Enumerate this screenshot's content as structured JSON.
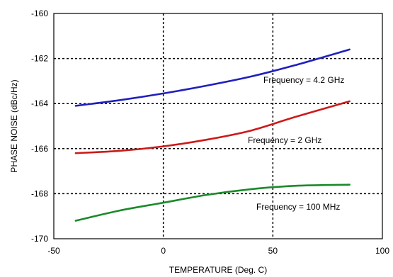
{
  "chart_data": {
    "type": "line",
    "title": "",
    "xlabel": "TEMPERATURE (Deg. C)",
    "ylabel": "PHASE NOISE (dBc/Hz)",
    "xlim": [
      -50,
      100
    ],
    "ylim": [
      -170,
      -160
    ],
    "x_ticks": [
      -50,
      0,
      50,
      100
    ],
    "y_ticks": [
      -170,
      -168,
      -166,
      -164,
      -162,
      -160
    ],
    "x_tick_labels": [
      "-50",
      "0",
      "50",
      "100"
    ],
    "y_tick_labels": [
      "-170",
      "-168",
      "-166",
      "-164",
      "-162",
      "-160"
    ],
    "grid": true,
    "legend": "none",
    "series": [
      {
        "label": "Frequency  = 4.2 GHz",
        "color": "#1f1fbf",
        "x": [
          -40,
          -20,
          0,
          20,
          40,
          60,
          85
        ],
        "y": [
          -164.1,
          -163.85,
          -163.55,
          -163.2,
          -162.8,
          -162.3,
          -161.6
        ]
      },
      {
        "label": "Frequency  = 2 GHz",
        "color": "#cc1a1a",
        "x": [
          -40,
          -20,
          0,
          20,
          40,
          60,
          85
        ],
        "y": [
          -166.2,
          -166.1,
          -165.9,
          -165.6,
          -165.2,
          -164.6,
          -163.9
        ]
      },
      {
        "label": "Frequency  = 100 MHz",
        "color": "#1a8a2a",
        "x": [
          -40,
          -20,
          0,
          20,
          40,
          60,
          85
        ],
        "y": [
          -169.2,
          -168.75,
          -168.4,
          -168.05,
          -167.8,
          -167.65,
          -167.6
        ]
      }
    ]
  }
}
